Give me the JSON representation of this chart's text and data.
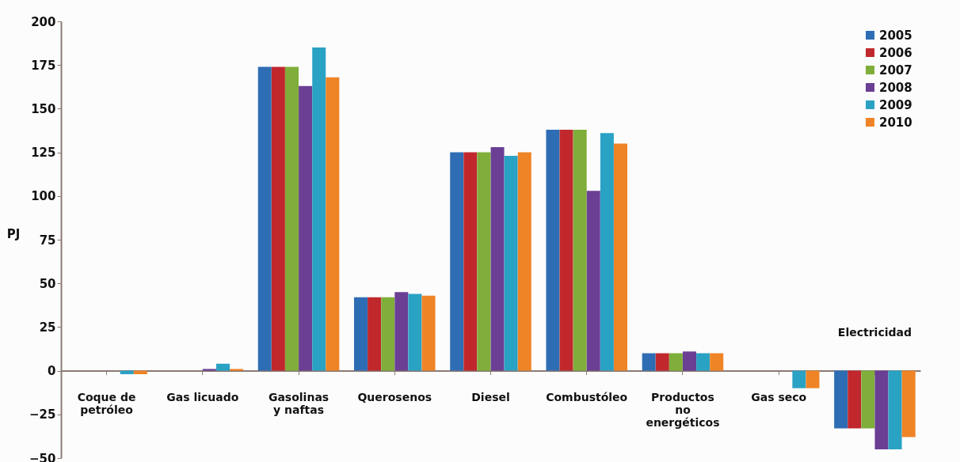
{
  "chart_data": {
    "type": "bar",
    "ylabel": "PJ",
    "categories": [
      "Coque de\npetróleo",
      "Gas licuado",
      "Gasolinas\ny naftas",
      "Querosenos",
      "Diesel",
      "Combustóleo",
      "Productos\nno\nenergéticos",
      "Gas seco",
      "Electricidad"
    ],
    "series": [
      {
        "name": "2005",
        "color": "#2e6db4",
        "values": [
          0,
          0,
          174,
          42,
          125,
          138,
          10,
          0,
          -33
        ]
      },
      {
        "name": "2006",
        "color": "#c0282d",
        "values": [
          0,
          0,
          174,
          42,
          125,
          138,
          10,
          0,
          -33
        ]
      },
      {
        "name": "2007",
        "color": "#7fae3a",
        "values": [
          0,
          0,
          174,
          42,
          125,
          138,
          10,
          0,
          -33
        ]
      },
      {
        "name": "2008",
        "color": "#6a3f94",
        "values": [
          0,
          1,
          163,
          45,
          128,
          103,
          11,
          0,
          -45
        ]
      },
      {
        "name": "2009",
        "color": "#2aa2c4",
        "values": [
          -2,
          4,
          185,
          44,
          123,
          136,
          10,
          -10,
          -45
        ]
      },
      {
        "name": "2010",
        "color": "#ef8426",
        "values": [
          -2,
          1,
          168,
          43,
          125,
          130,
          10,
          -10,
          -38
        ]
      }
    ],
    "ylim": [
      -50,
      200
    ],
    "yticks": [
      -50,
      -25,
      0,
      25,
      50,
      75,
      100,
      125,
      150,
      175,
      200
    ],
    "grid": false,
    "legend": "top right"
  }
}
